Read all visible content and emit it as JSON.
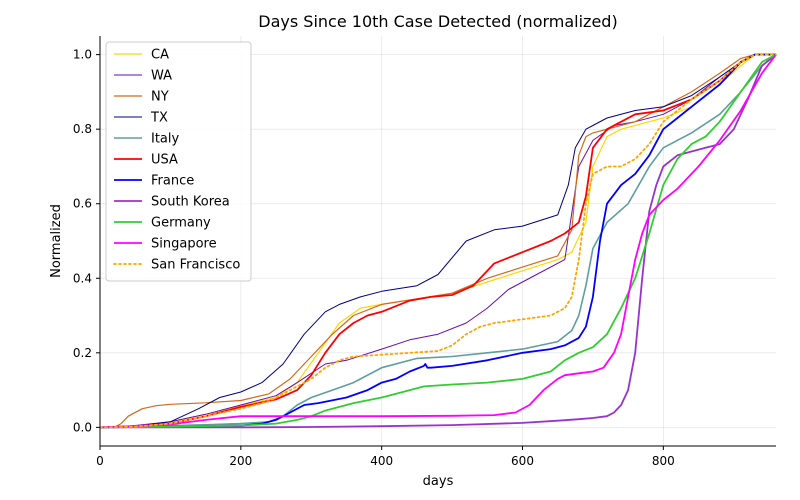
{
  "chart_data": {
    "type": "line",
    "title": "Days Since 10th Case Detected (normalized)",
    "xlabel": "days",
    "ylabel": "Normalized",
    "xlim": [
      0,
      960
    ],
    "ylim": [
      -0.05,
      1.05
    ],
    "xticks": [
      0,
      200,
      400,
      600,
      800
    ],
    "yticks": [
      0.0,
      0.2,
      0.4,
      0.6,
      0.8,
      1.0
    ],
    "grid": true,
    "legend_position": "top-left",
    "series": [
      {
        "name": "CA",
        "color": "#FFD700",
        "dash": "solid",
        "width": 1.2,
        "x": [
          0,
          50,
          100,
          150,
          200,
          250,
          280,
          310,
          340,
          370,
          400,
          450,
          500,
          550,
          600,
          650,
          670,
          690,
          700,
          720,
          740,
          780,
          800,
          840,
          880,
          910,
          930,
          940,
          960
        ],
        "y": [
          0,
          0.003,
          0.015,
          0.035,
          0.058,
          0.08,
          0.12,
          0.2,
          0.28,
          0.32,
          0.33,
          0.345,
          0.36,
          0.39,
          0.42,
          0.45,
          0.47,
          0.55,
          0.7,
          0.78,
          0.8,
          0.82,
          0.83,
          0.86,
          0.92,
          0.97,
          1.0,
          1.0,
          1.0
        ]
      },
      {
        "name": "WA",
        "color": "#6A0DAD",
        "dash": "solid",
        "width": 1.0,
        "x": [
          0,
          50,
          100,
          150,
          200,
          250,
          280,
          320,
          350,
          400,
          440,
          480,
          520,
          550,
          580,
          620,
          660,
          680,
          700,
          730,
          760,
          800,
          840,
          880,
          910,
          930,
          960
        ],
        "y": [
          0,
          0.005,
          0.015,
          0.035,
          0.06,
          0.085,
          0.12,
          0.17,
          0.18,
          0.21,
          0.235,
          0.25,
          0.28,
          0.32,
          0.37,
          0.41,
          0.45,
          0.7,
          0.77,
          0.81,
          0.82,
          0.84,
          0.88,
          0.94,
          0.98,
          1.0,
          1.0
        ]
      },
      {
        "name": "NY",
        "color": "#D2691E",
        "dash": "solid",
        "width": 1.2,
        "x": [
          0,
          20,
          30,
          40,
          60,
          80,
          100,
          150,
          200,
          240,
          270,
          300,
          330,
          360,
          400,
          450,
          500,
          550,
          600,
          650,
          670,
          680,
          690,
          700,
          720,
          760,
          800,
          840,
          880,
          910,
          930,
          960
        ],
        "y": [
          0,
          0,
          0.01,
          0.03,
          0.05,
          0.058,
          0.062,
          0.066,
          0.072,
          0.09,
          0.13,
          0.19,
          0.25,
          0.3,
          0.33,
          0.345,
          0.36,
          0.4,
          0.43,
          0.46,
          0.53,
          0.73,
          0.78,
          0.79,
          0.8,
          0.82,
          0.86,
          0.9,
          0.95,
          0.99,
          1.0,
          1.0
        ]
      },
      {
        "name": "TX",
        "color": "#000080",
        "dash": "solid",
        "width": 1.0,
        "x": [
          0,
          50,
          100,
          140,
          170,
          200,
          230,
          260,
          290,
          320,
          340,
          370,
          400,
          450,
          480,
          520,
          560,
          600,
          650,
          665,
          675,
          690,
          700,
          720,
          760,
          800,
          840,
          880,
          910,
          930,
          960
        ],
        "y": [
          0,
          0.003,
          0.015,
          0.05,
          0.08,
          0.095,
          0.12,
          0.17,
          0.25,
          0.31,
          0.33,
          0.35,
          0.365,
          0.38,
          0.41,
          0.5,
          0.53,
          0.54,
          0.57,
          0.65,
          0.75,
          0.8,
          0.81,
          0.83,
          0.85,
          0.86,
          0.89,
          0.94,
          0.98,
          1.0,
          1.0
        ]
      },
      {
        "name": "Italy",
        "color": "#5F9EA0",
        "dash": "solid",
        "width": 1.6,
        "x": [
          0,
          50,
          100,
          150,
          200,
          240,
          260,
          280,
          300,
          330,
          360,
          400,
          450,
          500,
          550,
          600,
          650,
          670,
          680,
          690,
          700,
          720,
          750,
          780,
          800,
          840,
          880,
          910,
          940,
          960
        ],
        "y": [
          0,
          0.002,
          0.005,
          0.007,
          0.01,
          0.015,
          0.03,
          0.06,
          0.08,
          0.1,
          0.12,
          0.16,
          0.185,
          0.19,
          0.2,
          0.21,
          0.23,
          0.26,
          0.3,
          0.38,
          0.48,
          0.55,
          0.6,
          0.7,
          0.75,
          0.79,
          0.84,
          0.9,
          0.97,
          1.0
        ]
      },
      {
        "name": "USA",
        "color": "#FF0000",
        "dash": "solid",
        "width": 1.8,
        "x": [
          0,
          50,
          100,
          150,
          200,
          250,
          280,
          300,
          320,
          340,
          360,
          380,
          400,
          440,
          470,
          500,
          530,
          560,
          600,
          640,
          660,
          680,
          690,
          700,
          720,
          760,
          800,
          840,
          880,
          910,
          930,
          960
        ],
        "y": [
          0,
          0.003,
          0.01,
          0.03,
          0.055,
          0.075,
          0.1,
          0.14,
          0.2,
          0.25,
          0.28,
          0.3,
          0.31,
          0.34,
          0.35,
          0.355,
          0.38,
          0.44,
          0.47,
          0.5,
          0.52,
          0.55,
          0.62,
          0.75,
          0.8,
          0.84,
          0.85,
          0.88,
          0.93,
          0.98,
          1.0,
          1.0
        ]
      },
      {
        "name": "France",
        "color": "#0000FF",
        "dash": "solid",
        "width": 1.8,
        "x": [
          0,
          50,
          100,
          150,
          200,
          230,
          250,
          270,
          290,
          310,
          350,
          380,
          400,
          420,
          440,
          460,
          462,
          465,
          470,
          500,
          550,
          600,
          640,
          660,
          680,
          690,
          700,
          710,
          720,
          740,
          760,
          780,
          800,
          820,
          840,
          880,
          910,
          930,
          960
        ],
        "y": [
          0,
          0.001,
          0.002,
          0.003,
          0.005,
          0.01,
          0.02,
          0.04,
          0.06,
          0.065,
          0.08,
          0.1,
          0.12,
          0.13,
          0.15,
          0.165,
          0.17,
          0.16,
          0.16,
          0.165,
          0.18,
          0.2,
          0.21,
          0.22,
          0.24,
          0.27,
          0.35,
          0.5,
          0.6,
          0.65,
          0.68,
          0.73,
          0.8,
          0.83,
          0.86,
          0.92,
          0.98,
          1.0,
          1.0
        ]
      },
      {
        "name": "South Korea",
        "color": "#9932CC",
        "dash": "solid",
        "width": 1.8,
        "x": [
          0,
          100,
          200,
          300,
          400,
          500,
          600,
          650,
          680,
          700,
          720,
          730,
          740,
          750,
          760,
          770,
          780,
          790,
          800,
          820,
          840,
          860,
          880,
          900,
          920,
          940,
          960
        ],
        "y": [
          0,
          0,
          0,
          0.001,
          0.003,
          0.006,
          0.012,
          0.018,
          0.022,
          0.025,
          0.03,
          0.04,
          0.06,
          0.1,
          0.2,
          0.4,
          0.58,
          0.65,
          0.7,
          0.73,
          0.74,
          0.75,
          0.76,
          0.8,
          0.88,
          0.97,
          1.0
        ]
      },
      {
        "name": "Germany",
        "color": "#32CD32",
        "dash": "solid",
        "width": 1.8,
        "x": [
          0,
          100,
          200,
          250,
          280,
          300,
          320,
          340,
          360,
          400,
          430,
          460,
          500,
          550,
          600,
          640,
          660,
          680,
          700,
          720,
          740,
          760,
          780,
          800,
          820,
          840,
          860,
          880,
          910,
          940,
          960
        ],
        "y": [
          0,
          0.002,
          0.005,
          0.01,
          0.02,
          0.03,
          0.045,
          0.055,
          0.065,
          0.08,
          0.095,
          0.11,
          0.115,
          0.12,
          0.13,
          0.15,
          0.18,
          0.2,
          0.215,
          0.25,
          0.32,
          0.4,
          0.52,
          0.65,
          0.72,
          0.76,
          0.78,
          0.82,
          0.9,
          0.98,
          1.0
        ]
      },
      {
        "name": "Singapore",
        "color": "#FF00FF",
        "dash": "solid",
        "width": 1.8,
        "x": [
          0,
          50,
          100,
          150,
          200,
          250,
          300,
          400,
          500,
          560,
          590,
          610,
          630,
          650,
          660,
          680,
          700,
          715,
          730,
          740,
          750,
          760,
          770,
          780,
          800,
          820,
          850,
          880,
          910,
          940,
          960
        ],
        "y": [
          0,
          0.003,
          0.008,
          0.02,
          0.03,
          0.03,
          0.03,
          0.03,
          0.031,
          0.033,
          0.04,
          0.06,
          0.1,
          0.13,
          0.14,
          0.145,
          0.15,
          0.16,
          0.2,
          0.25,
          0.35,
          0.45,
          0.52,
          0.57,
          0.61,
          0.64,
          0.7,
          0.77,
          0.85,
          0.95,
          1.0
        ]
      },
      {
        "name": "San Francisco",
        "color": "#FFA500",
        "dash": "dotted",
        "width": 1.8,
        "x": [
          0,
          50,
          100,
          150,
          200,
          240,
          270,
          300,
          320,
          340,
          360,
          400,
          440,
          480,
          500,
          520,
          540,
          560,
          600,
          640,
          660,
          670,
          680,
          690,
          700,
          720,
          740,
          760,
          780,
          800,
          840,
          880,
          910,
          930,
          960
        ],
        "y": [
          0,
          0.002,
          0.01,
          0.03,
          0.05,
          0.07,
          0.1,
          0.13,
          0.16,
          0.18,
          0.19,
          0.195,
          0.2,
          0.205,
          0.22,
          0.25,
          0.27,
          0.28,
          0.29,
          0.3,
          0.32,
          0.35,
          0.45,
          0.6,
          0.68,
          0.7,
          0.7,
          0.72,
          0.76,
          0.82,
          0.88,
          0.93,
          0.98,
          1.0,
          1.0
        ]
      }
    ]
  }
}
